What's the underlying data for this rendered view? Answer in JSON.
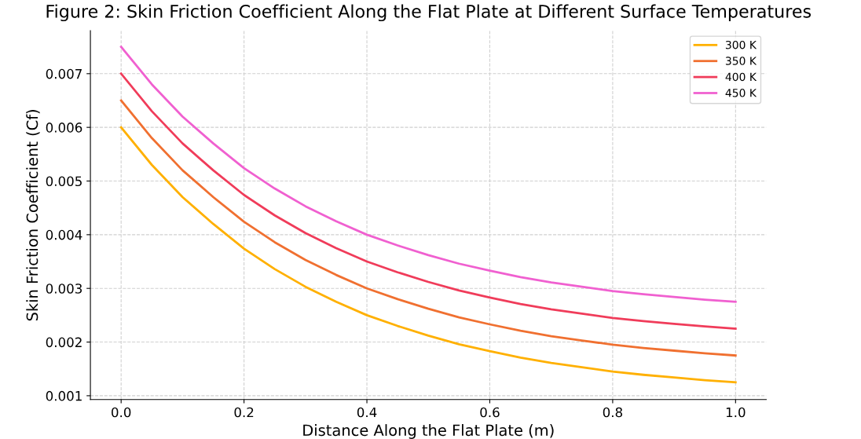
{
  "chart_data": {
    "type": "line",
    "title": "Figure 2: Skin Friction Coefficient Along the Flat Plate at Different Surface Temperatures",
    "xlabel": "Distance Along the Flat Plate (m)",
    "ylabel": "Skin Friction Coefficient (Cf)",
    "x": [
      0,
      0.05,
      0.1,
      0.15,
      0.2,
      0.25,
      0.3,
      0.35,
      0.4,
      0.45,
      0.5,
      0.55,
      0.6,
      0.65,
      0.7,
      0.75,
      0.8,
      0.85,
      0.9,
      0.95,
      1.0
    ],
    "series": [
      {
        "name": "300 K",
        "color": "#ffb000",
        "values": [
          0.006,
          0.0053,
          0.0047,
          0.0042,
          0.00374,
          0.00336,
          0.00303,
          0.00275,
          0.0025,
          0.0023,
          0.00212,
          0.00196,
          0.00183,
          0.00171,
          0.00161,
          0.00153,
          0.00145,
          0.00139,
          0.00134,
          0.00129,
          0.00125
        ]
      },
      {
        "name": "350 K",
        "color": "#f07030",
        "values": [
          0.0065,
          0.0058,
          0.0052,
          0.0047,
          0.00424,
          0.00386,
          0.00353,
          0.00325,
          0.003,
          0.0028,
          0.00262,
          0.00246,
          0.00233,
          0.00221,
          0.00211,
          0.00203,
          0.00195,
          0.00189,
          0.00184,
          0.00179,
          0.00175
        ]
      },
      {
        "name": "400 K",
        "color": "#f03c5a",
        "values": [
          0.007,
          0.0063,
          0.0057,
          0.0052,
          0.00474,
          0.00436,
          0.00403,
          0.00375,
          0.0035,
          0.0033,
          0.00312,
          0.00296,
          0.00283,
          0.00271,
          0.00261,
          0.00253,
          0.00245,
          0.00239,
          0.00234,
          0.00229,
          0.00225
        ]
      },
      {
        "name": "450 K",
        "color": "#f060d0",
        "values": [
          0.0075,
          0.0068,
          0.0062,
          0.0057,
          0.00524,
          0.00486,
          0.00453,
          0.00425,
          0.004,
          0.0038,
          0.00362,
          0.00346,
          0.00333,
          0.00321,
          0.00311,
          0.00303,
          0.00295,
          0.00289,
          0.00284,
          0.00279,
          0.00275
        ]
      }
    ],
    "xlim": [
      -0.05,
      1.05
    ],
    "xticks": [
      {
        "value": 0,
        "label": "0.0"
      },
      0.2,
      0.4,
      0.6,
      0.8,
      {
        "value": 1,
        "label": "1.0"
      }
    ],
    "ylim": [
      0.00093,
      0.0078
    ],
    "yticks": [
      0.001,
      0.002,
      0.003,
      0.004,
      0.005,
      0.006,
      0.007
    ],
    "grid": true,
    "legend": "top right",
    "line_style": "solid"
  }
}
